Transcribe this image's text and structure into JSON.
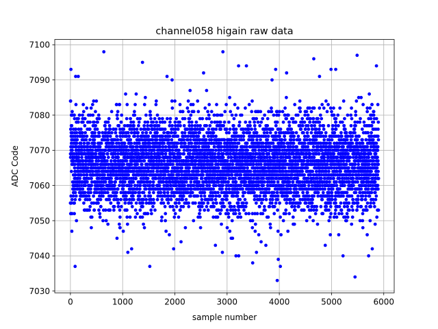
{
  "chart_data": {
    "type": "scatter",
    "title": "channel058 higain raw data",
    "xlabel": "sample number",
    "ylabel": "ADC Code",
    "xlim": [
      -300,
      6200
    ],
    "ylim": [
      7029.5,
      7101.5
    ],
    "xticks": [
      0,
      1000,
      2000,
      3000,
      4000,
      5000,
      6000
    ],
    "yticks": [
      7030,
      7040,
      7050,
      7060,
      7070,
      7080,
      7090,
      7100
    ],
    "grid": true,
    "marker_color": "#0000ff",
    "series": [
      {
        "x_start": 0,
        "x_end": 5900,
        "count": 5900,
        "y_center": 7066,
        "y_spread": 7,
        "y_min": 7033,
        "y_max": 7098,
        "notable_points": [
          {
            "x": 10,
            "y": 7093
          },
          {
            "x": 640,
            "y": 7098
          },
          {
            "x": 2920,
            "y": 7098
          },
          {
            "x": 5490,
            "y": 7097
          },
          {
            "x": 4660,
            "y": 7096
          },
          {
            "x": 1380,
            "y": 7095
          },
          {
            "x": 3220,
            "y": 7094
          },
          {
            "x": 3370,
            "y": 7094
          },
          {
            "x": 5860,
            "y": 7094
          },
          {
            "x": 3930,
            "y": 7093
          },
          {
            "x": 4990,
            "y": 7093
          },
          {
            "x": 5080,
            "y": 7093
          },
          {
            "x": 2550,
            "y": 7092
          },
          {
            "x": 1850,
            "y": 7091
          },
          {
            "x": 100,
            "y": 7091
          },
          {
            "x": 150,
            "y": 7091
          },
          {
            "x": 4770,
            "y": 7091
          },
          {
            "x": 90,
            "y": 7037
          },
          {
            "x": 1520,
            "y": 7037
          },
          {
            "x": 3490,
            "y": 7038
          },
          {
            "x": 3980,
            "y": 7039
          },
          {
            "x": 4020,
            "y": 7037
          },
          {
            "x": 3960,
            "y": 7033
          },
          {
            "x": 5450,
            "y": 7034
          },
          {
            "x": 5220,
            "y": 7040
          },
          {
            "x": 5710,
            "y": 7040
          },
          {
            "x": 3170,
            "y": 7040
          },
          {
            "x": 5780,
            "y": 7042
          },
          {
            "x": 2910,
            "y": 7041
          },
          {
            "x": 1100,
            "y": 7041
          }
        ]
      }
    ]
  }
}
